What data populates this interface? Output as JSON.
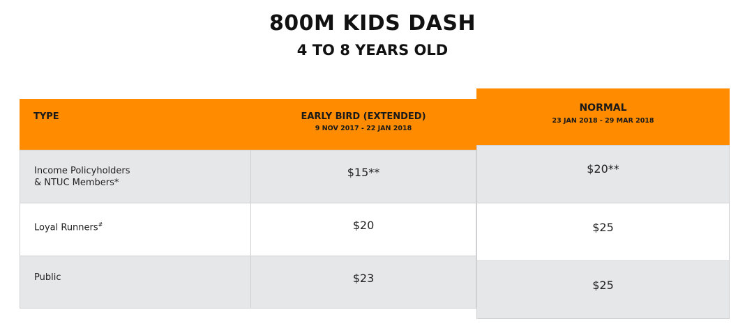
{
  "title": "800M KIDS DASH",
  "subtitle": "4 TO 8 YEARS OLD",
  "table": {
    "type_header": "TYPE",
    "early_bird": {
      "title": "EARLY BIRD (EXTENDED)",
      "dates": "9 NOV 2017 - 22 JAN 2018"
    },
    "normal": {
      "title": "NORMAL",
      "dates": "23 JAN 2018 - 29 MAR 2018"
    },
    "rows": [
      {
        "label_line1": "Income Policyholders",
        "label_line2": "& NTUC Members*",
        "early": "$15**",
        "normal": "$20**"
      },
      {
        "label": "Loyal Runners",
        "label_sup": "#",
        "early": "$20",
        "normal": "$25"
      },
      {
        "label": "Public",
        "early": "$23",
        "normal": "$25"
      }
    ]
  }
}
